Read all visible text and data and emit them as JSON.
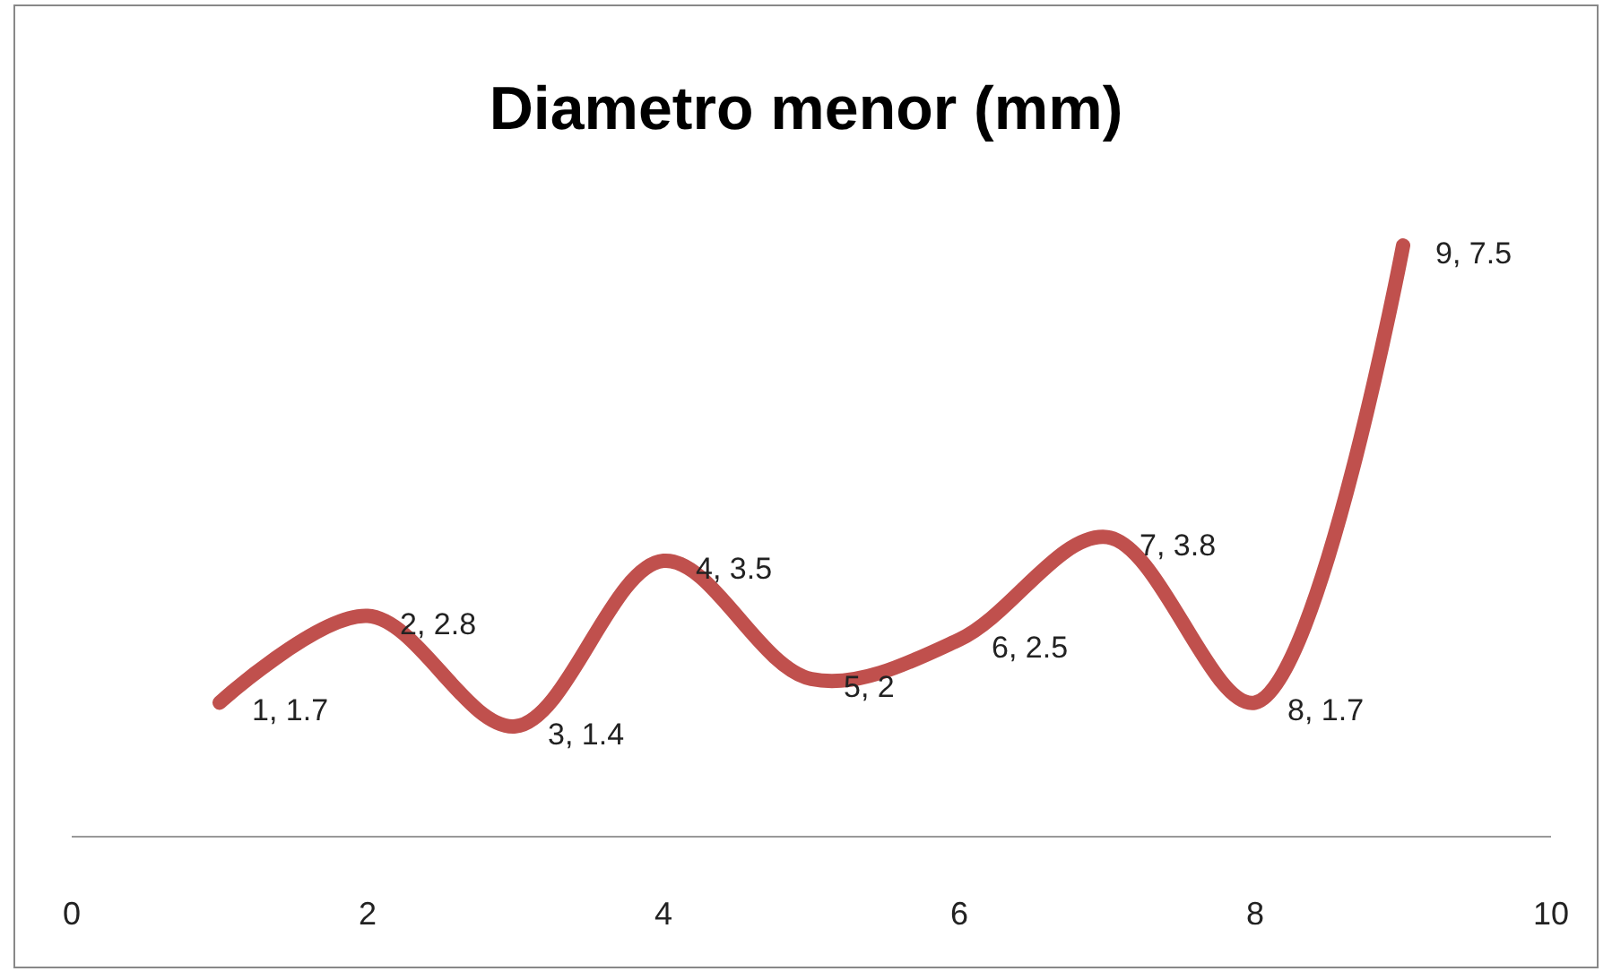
{
  "chart_data": {
    "type": "line",
    "title": "Diametro menor (mm)",
    "x": [
      1,
      2,
      3,
      4,
      5,
      6,
      7,
      8,
      9
    ],
    "series": [
      {
        "color": "#c0504d",
        "values": [
          1.7,
          2.8,
          1.4,
          3.5,
          2,
          2.5,
          3.8,
          1.7,
          7.5
        ],
        "value_labels": [
          "1, 1.7",
          "2, 2.8",
          "3, 1.4",
          "4, 3.5",
          "5, 2",
          "6, 2.5",
          "7, 3.8",
          "8, 1.7",
          "9, 7.5"
        ]
      }
    ],
    "xlim": [
      0,
      10
    ],
    "xticks": [
      0,
      2,
      4,
      6,
      8,
      10
    ],
    "tick_labels": "x",
    "marker": "none",
    "line_style": "solid"
  }
}
